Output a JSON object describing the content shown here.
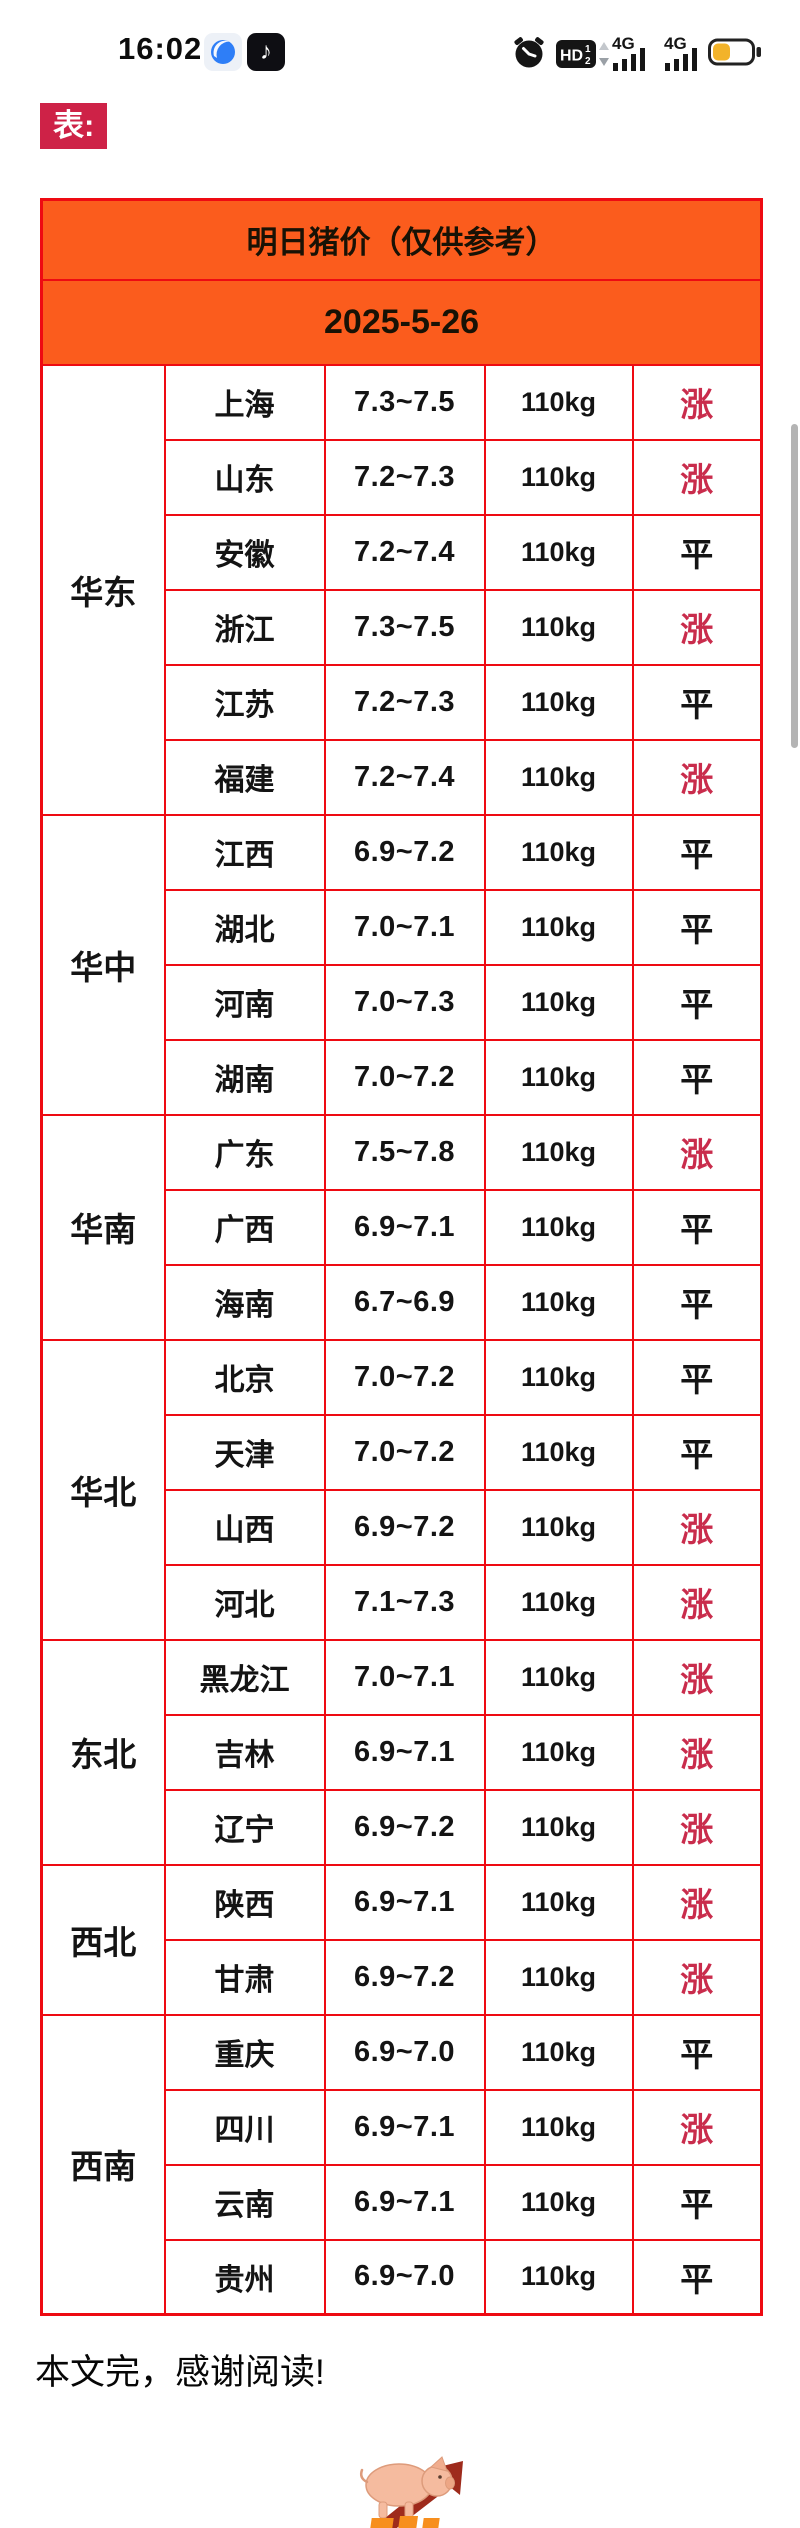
{
  "status_bar": {
    "time": "16:02",
    "network_label": "4G",
    "hd_label": "HD",
    "hd_sup": "1",
    "hd_sub": "2",
    "douyin_glyph": "♪",
    "battery_fill_ratio": 0.4,
    "icon_names": [
      "messenger-app-icon",
      "douyin-app-icon",
      "alarm-icon",
      "hd-volte-icon",
      "updown-arrows-icon",
      "signal-4g-icon",
      "battery-icon"
    ]
  },
  "page_label": "表:",
  "table": {
    "title": "明日猪价（仅供参考）",
    "date": "2025-5-26",
    "regions": [
      {
        "name": "华东",
        "provinces": [
          {
            "province": "上海",
            "price": "7.3~7.5",
            "weight": "110kg",
            "trend": "涨",
            "up": true
          },
          {
            "province": "山东",
            "price": "7.2~7.3",
            "weight": "110kg",
            "trend": "涨",
            "up": true
          },
          {
            "province": "安徽",
            "price": "7.2~7.4",
            "weight": "110kg",
            "trend": "平",
            "up": false
          },
          {
            "province": "浙江",
            "price": "7.3~7.5",
            "weight": "110kg",
            "trend": "涨",
            "up": true
          },
          {
            "province": "江苏",
            "price": "7.2~7.3",
            "weight": "110kg",
            "trend": "平",
            "up": false
          },
          {
            "province": "福建",
            "price": "7.2~7.4",
            "weight": "110kg",
            "trend": "涨",
            "up": true
          }
        ]
      },
      {
        "name": "华中",
        "provinces": [
          {
            "province": "江西",
            "price": "6.9~7.2",
            "weight": "110kg",
            "trend": "平",
            "up": false
          },
          {
            "province": "湖北",
            "price": "7.0~7.1",
            "weight": "110kg",
            "trend": "平",
            "up": false
          },
          {
            "province": "河南",
            "price": "7.0~7.3",
            "weight": "110kg",
            "trend": "平",
            "up": false
          },
          {
            "province": "湖南",
            "price": "7.0~7.2",
            "weight": "110kg",
            "trend": "平",
            "up": false
          }
        ]
      },
      {
        "name": "华南",
        "provinces": [
          {
            "province": "广东",
            "price": "7.5~7.8",
            "weight": "110kg",
            "trend": "涨",
            "up": true
          },
          {
            "province": "广西",
            "price": "6.9~7.1",
            "weight": "110kg",
            "trend": "平",
            "up": false
          },
          {
            "province": "海南",
            "price": "6.7~6.9",
            "weight": "110kg",
            "trend": "平",
            "up": false
          }
        ]
      },
      {
        "name": "华北",
        "provinces": [
          {
            "province": "北京",
            "price": "7.0~7.2",
            "weight": "110kg",
            "trend": "平",
            "up": false
          },
          {
            "province": "天津",
            "price": "7.0~7.2",
            "weight": "110kg",
            "trend": "平",
            "up": false
          },
          {
            "province": "山西",
            "price": "6.9~7.2",
            "weight": "110kg",
            "trend": "涨",
            "up": true
          },
          {
            "province": "河北",
            "price": "7.1~7.3",
            "weight": "110kg",
            "trend": "涨",
            "up": true
          }
        ]
      },
      {
        "name": "东北",
        "provinces": [
          {
            "province": "黑龙江",
            "price": "7.0~7.1",
            "weight": "110kg",
            "trend": "涨",
            "up": true
          },
          {
            "province": "吉林",
            "price": "6.9~7.1",
            "weight": "110kg",
            "trend": "涨",
            "up": true
          },
          {
            "province": "辽宁",
            "price": "6.9~7.2",
            "weight": "110kg",
            "trend": "涨",
            "up": true
          }
        ]
      },
      {
        "name": "西北",
        "provinces": [
          {
            "province": "陕西",
            "price": "6.9~7.1",
            "weight": "110kg",
            "trend": "涨",
            "up": true
          },
          {
            "province": "甘肃",
            "price": "6.9~7.2",
            "weight": "110kg",
            "trend": "涨",
            "up": true
          }
        ]
      },
      {
        "name": "西南",
        "provinces": [
          {
            "province": "重庆",
            "price": "6.9~7.0",
            "weight": "110kg",
            "trend": "平",
            "up": false
          },
          {
            "province": "四川",
            "price": "6.9~7.1",
            "weight": "110kg",
            "trend": "涨",
            "up": true
          },
          {
            "province": "云南",
            "price": "6.9~7.1",
            "weight": "110kg",
            "trend": "平",
            "up": false
          },
          {
            "province": "贵州",
            "price": "6.9~7.0",
            "weight": "110kg",
            "trend": "平",
            "up": false
          }
        ]
      }
    ]
  },
  "footer": {
    "end_text": "本文完，感谢阅读!",
    "logo": "pig-arrow-logo"
  },
  "colors": {
    "accent_orange": "#fb5c1d",
    "table_border": "#ee0a12",
    "label_crimson": "#ce2247",
    "trend_up": "#c92c4c",
    "battery_yellow": "#f2b32a"
  }
}
